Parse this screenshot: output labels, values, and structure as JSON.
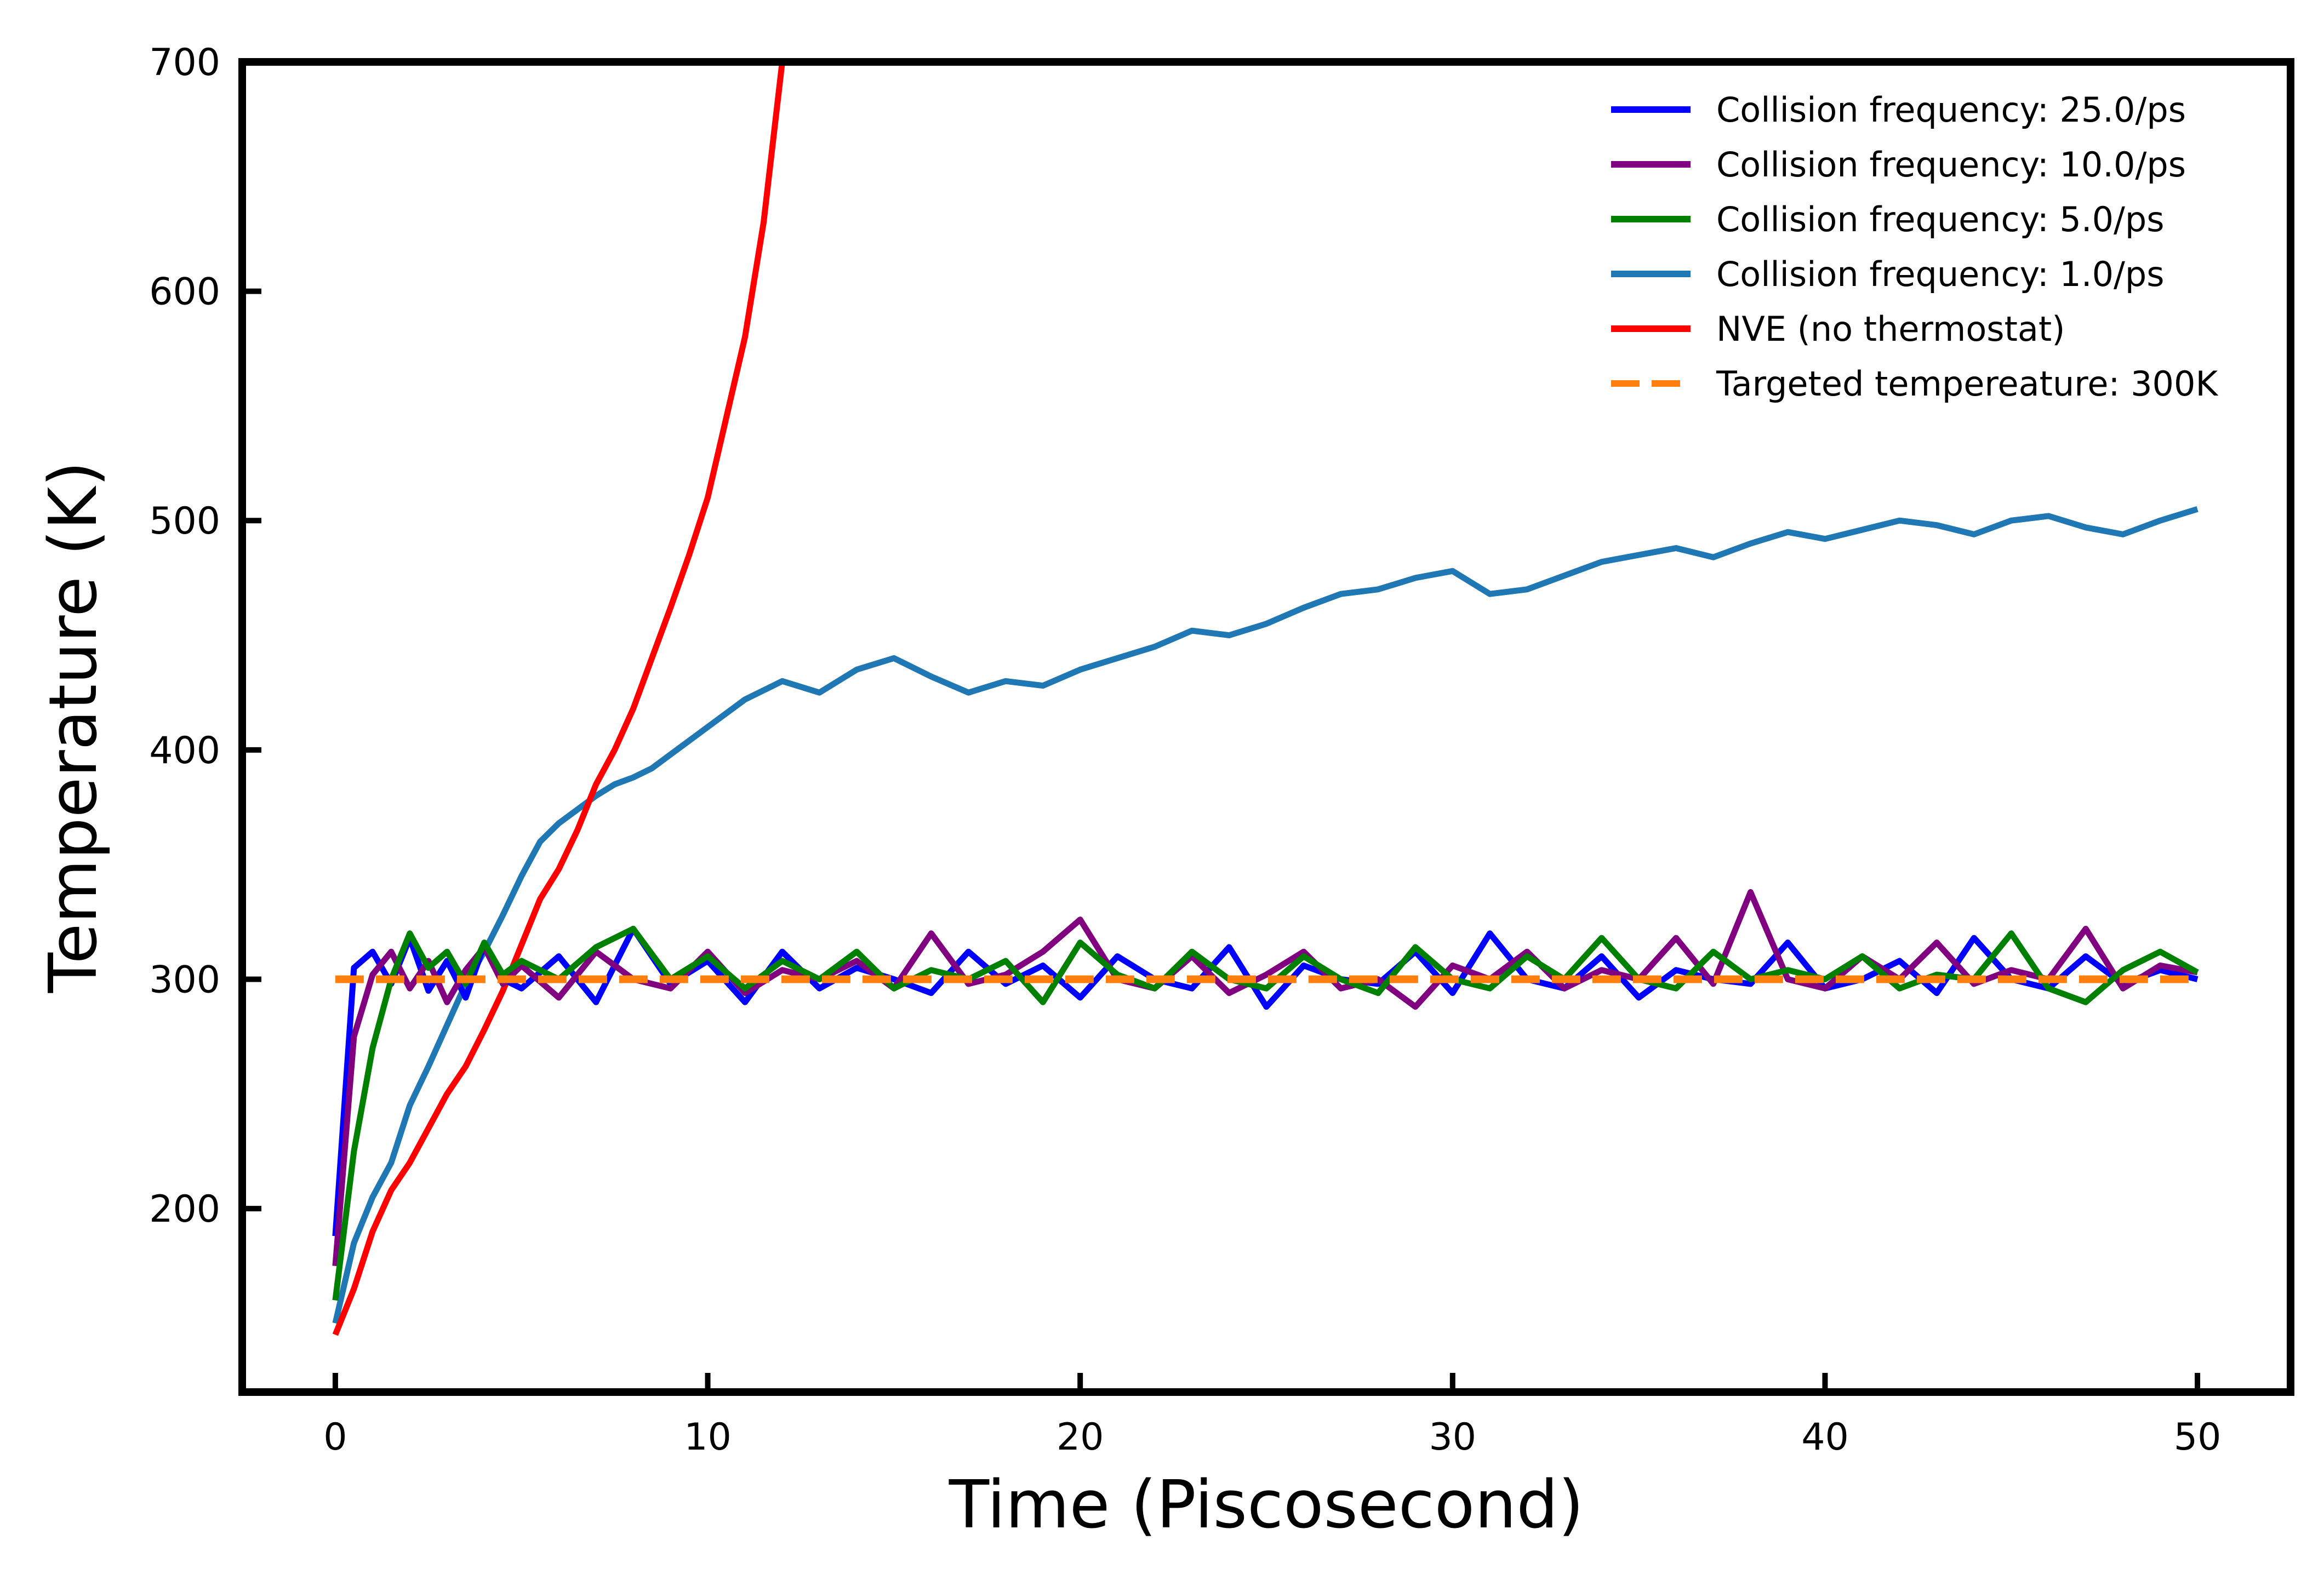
{
  "chart_data": {
    "type": "line",
    "title": "",
    "xlabel": "Time (Piscosecond)",
    "ylabel": "Temperature (K)",
    "xlim": [
      -2.5,
      52.5
    ],
    "ylim": [
      120,
      700
    ],
    "xticks": [
      0,
      10,
      20,
      30,
      40,
      50
    ],
    "yticks": [
      200,
      300,
      400,
      500,
      600,
      700
    ],
    "xtick_labels": [
      "0",
      "10",
      "20",
      "30",
      "40",
      "50"
    ],
    "ytick_labels": [
      "200",
      "300",
      "400",
      "500",
      "600",
      "700"
    ],
    "grid": false,
    "legend_position": "top-right",
    "series": [
      {
        "name": "Collision frequency: 25.0/ps",
        "color": "#0000ff",
        "style": "solid",
        "x": [
          0,
          0.5,
          1,
          1.5,
          2,
          2.5,
          3,
          3.5,
          4,
          4.5,
          5,
          6,
          7,
          8,
          9,
          10,
          11,
          12,
          13,
          14,
          15,
          16,
          17,
          18,
          19,
          20,
          21,
          22,
          23,
          24,
          25,
          26,
          27,
          28,
          29,
          30,
          31,
          32,
          33,
          34,
          35,
          36,
          37,
          38,
          39,
          40,
          41,
          42,
          43,
          44,
          45,
          46,
          47,
          48,
          49,
          50
        ],
        "y": [
          188,
          305,
          312,
          298,
          318,
          295,
          308,
          292,
          315,
          300,
          296,
          310,
          290,
          322,
          298,
          308,
          290,
          312,
          296,
          305,
          300,
          294,
          312,
          298,
          306,
          292,
          310,
          300,
          296,
          314,
          288,
          306,
          300,
          298,
          312,
          294,
          320,
          300,
          296,
          310,
          292,
          304,
          300,
          298,
          316,
          296,
          300,
          308,
          294,
          318,
          300,
          296,
          310,
          298,
          304,
          300
        ]
      },
      {
        "name": "Collision frequency: 10.0/ps",
        "color": "#800080",
        "style": "solid",
        "x": [
          0,
          0.5,
          1,
          1.5,
          2,
          2.5,
          3,
          3.5,
          4,
          4.5,
          5,
          6,
          7,
          8,
          9,
          10,
          11,
          12,
          13,
          14,
          15,
          16,
          17,
          18,
          19,
          20,
          21,
          22,
          23,
          24,
          25,
          26,
          27,
          28,
          29,
          30,
          31,
          32,
          33,
          34,
          35,
          36,
          37,
          38,
          39,
          40,
          41,
          42,
          43,
          44,
          45,
          46,
          47,
          48,
          49,
          50
        ],
        "y": [
          175,
          275,
          302,
          312,
          296,
          308,
          290,
          304,
          314,
          298,
          306,
          292,
          312,
          300,
          296,
          312,
          294,
          304,
          300,
          308,
          296,
          320,
          298,
          302,
          312,
          326,
          300,
          296,
          310,
          294,
          302,
          312,
          296,
          300,
          288,
          306,
          300,
          312,
          296,
          304,
          300,
          318,
          298,
          338,
          300,
          296,
          310,
          300,
          316,
          298,
          304,
          300,
          322,
          296,
          306,
          303
        ]
      },
      {
        "name": "Collision frequency: 5.0/ps",
        "color": "#008000",
        "style": "solid",
        "x": [
          0,
          0.5,
          1,
          1.5,
          2,
          2.5,
          3,
          3.5,
          4,
          4.5,
          5,
          6,
          7,
          8,
          9,
          10,
          11,
          12,
          13,
          14,
          15,
          16,
          17,
          18,
          19,
          20,
          21,
          22,
          23,
          24,
          25,
          26,
          27,
          28,
          29,
          30,
          31,
          32,
          33,
          34,
          35,
          36,
          37,
          38,
          39,
          40,
          41,
          42,
          43,
          44,
          45,
          46,
          47,
          48,
          49,
          50
        ],
        "y": [
          160,
          225,
          270,
          300,
          320,
          305,
          312,
          298,
          316,
          302,
          308,
          300,
          314,
          322,
          300,
          310,
          296,
          308,
          300,
          312,
          296,
          304,
          300,
          308,
          290,
          316,
          302,
          296,
          312,
          300,
          296,
          310,
          300,
          294,
          314,
          300,
          296,
          310,
          300,
          318,
          300,
          296,
          312,
          300,
          304,
          300,
          310,
          296,
          302,
          300,
          320,
          296,
          290,
          304,
          312,
          303
        ]
      },
      {
        "name": "Collision frequency: 1.0/ps",
        "color": "#1f77b4",
        "style": "solid",
        "x": [
          0,
          0.5,
          1,
          1.5,
          2,
          2.5,
          3,
          3.5,
          4,
          4.5,
          5,
          5.5,
          6,
          6.5,
          7,
          7.5,
          8,
          8.5,
          9,
          9.5,
          10,
          11,
          12,
          13,
          14,
          15,
          16,
          17,
          18,
          19,
          20,
          21,
          22,
          23,
          24,
          25,
          26,
          27,
          28,
          29,
          30,
          31,
          32,
          33,
          34,
          35,
          36,
          37,
          38,
          39,
          40,
          41,
          42,
          43,
          44,
          45,
          46,
          47,
          48,
          49,
          50
        ],
        "y": [
          150,
          185,
          205,
          220,
          245,
          262,
          280,
          298,
          312,
          328,
          345,
          360,
          368,
          374,
          380,
          385,
          388,
          392,
          398,
          404,
          410,
          422,
          430,
          425,
          435,
          440,
          432,
          425,
          430,
          428,
          435,
          440,
          445,
          452,
          450,
          455,
          462,
          468,
          470,
          475,
          478,
          468,
          470,
          476,
          482,
          485,
          488,
          484,
          490,
          495,
          492,
          496,
          500,
          498,
          494,
          500,
          502,
          497,
          494,
          500,
          505
        ]
      },
      {
        "name": "NVE (no thermostat)",
        "color": "#ff0000",
        "style": "solid",
        "x": [
          0,
          0.5,
          1,
          1.5,
          2,
          2.5,
          3,
          3.5,
          4,
          4.5,
          5,
          5.5,
          6,
          6.5,
          7,
          7.5,
          8,
          8.5,
          9,
          9.5,
          10,
          10.5,
          11,
          11.5,
          12
        ],
        "y": [
          145,
          165,
          190,
          208,
          220,
          235,
          250,
          262,
          278,
          295,
          315,
          335,
          348,
          365,
          385,
          400,
          418,
          440,
          462,
          485,
          510,
          545,
          580,
          630,
          700
        ]
      },
      {
        "name": "Targeted tempereature: 300K",
        "color": "#ff7f0e",
        "style": "dashed",
        "x": [
          0,
          50
        ],
        "y": [
          300,
          300
        ]
      }
    ]
  }
}
